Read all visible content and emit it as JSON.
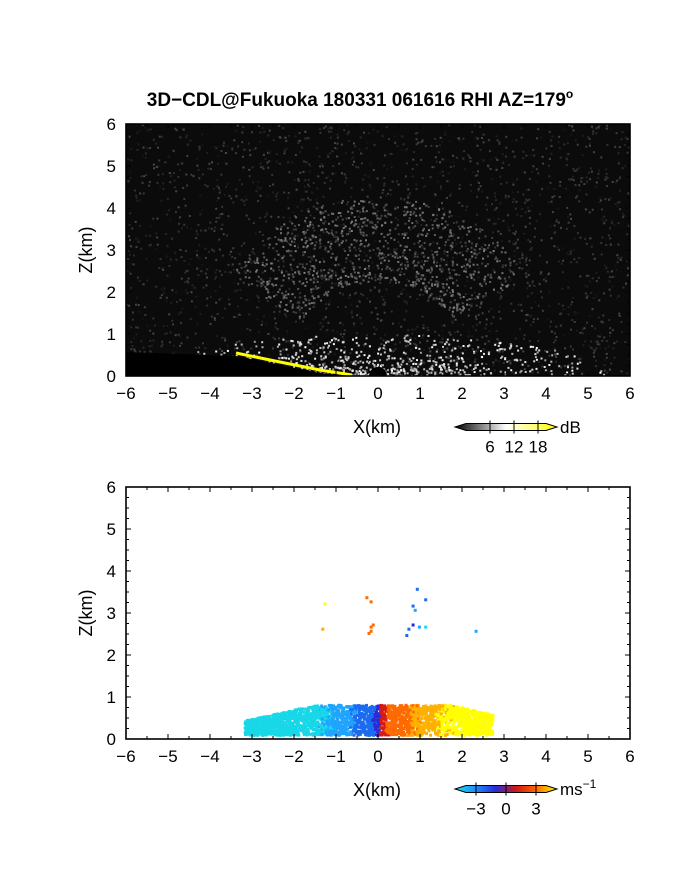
{
  "figure": {
    "title_main": "3D−CDL@Fukuoka 180331 061616 RHI AZ=179",
    "title_degree": "o"
  },
  "chart_data": [
    {
      "type": "heatmap",
      "name": "intensity",
      "xlabel": "X(km)",
      "ylabel": "Z(km)",
      "xlim": [
        -6,
        6
      ],
      "ylim": [
        0,
        6
      ],
      "x_ticks": [
        "−6",
        "−5",
        "−4",
        "−3",
        "−2",
        "−1",
        "0",
        "1",
        "2",
        "3",
        "4",
        "5",
        "6"
      ],
      "y_ticks": [
        "0",
        "1",
        "2",
        "3",
        "4",
        "5",
        "6"
      ],
      "background": "#0b0b0b",
      "colorbar": {
        "unit": "dB",
        "ticks": [
          "6",
          "12",
          "18"
        ],
        "tick_values": [
          6,
          12,
          18
        ],
        "range": [
          0,
          20
        ],
        "colors": [
          "#000000",
          "#ffffff",
          "#ffff00"
        ]
      }
    },
    {
      "type": "heatmap",
      "name": "doppler-velocity",
      "xlabel": "X(km)",
      "ylabel": "Z(km)",
      "xlim": [
        -6,
        6
      ],
      "ylim": [
        0,
        6
      ],
      "x_ticks": [
        "−6",
        "−5",
        "−4",
        "−3",
        "−2",
        "−1",
        "0",
        "1",
        "2",
        "3",
        "4",
        "5",
        "6"
      ],
      "y_ticks": [
        "0",
        "1",
        "2",
        "3",
        "4",
        "5",
        "6"
      ],
      "colorbar": {
        "unit": "ms",
        "unit_superscript": "−1",
        "ticks": [
          "−3",
          "0",
          "3"
        ],
        "tick_values": [
          -3,
          0,
          3
        ],
        "range": [
          -4,
          4
        ],
        "colors": [
          "#17e5e5",
          "#1f8cff",
          "#2a2ad8",
          "#d01818",
          "#ff6a00",
          "#ffff00"
        ]
      }
    }
  ]
}
